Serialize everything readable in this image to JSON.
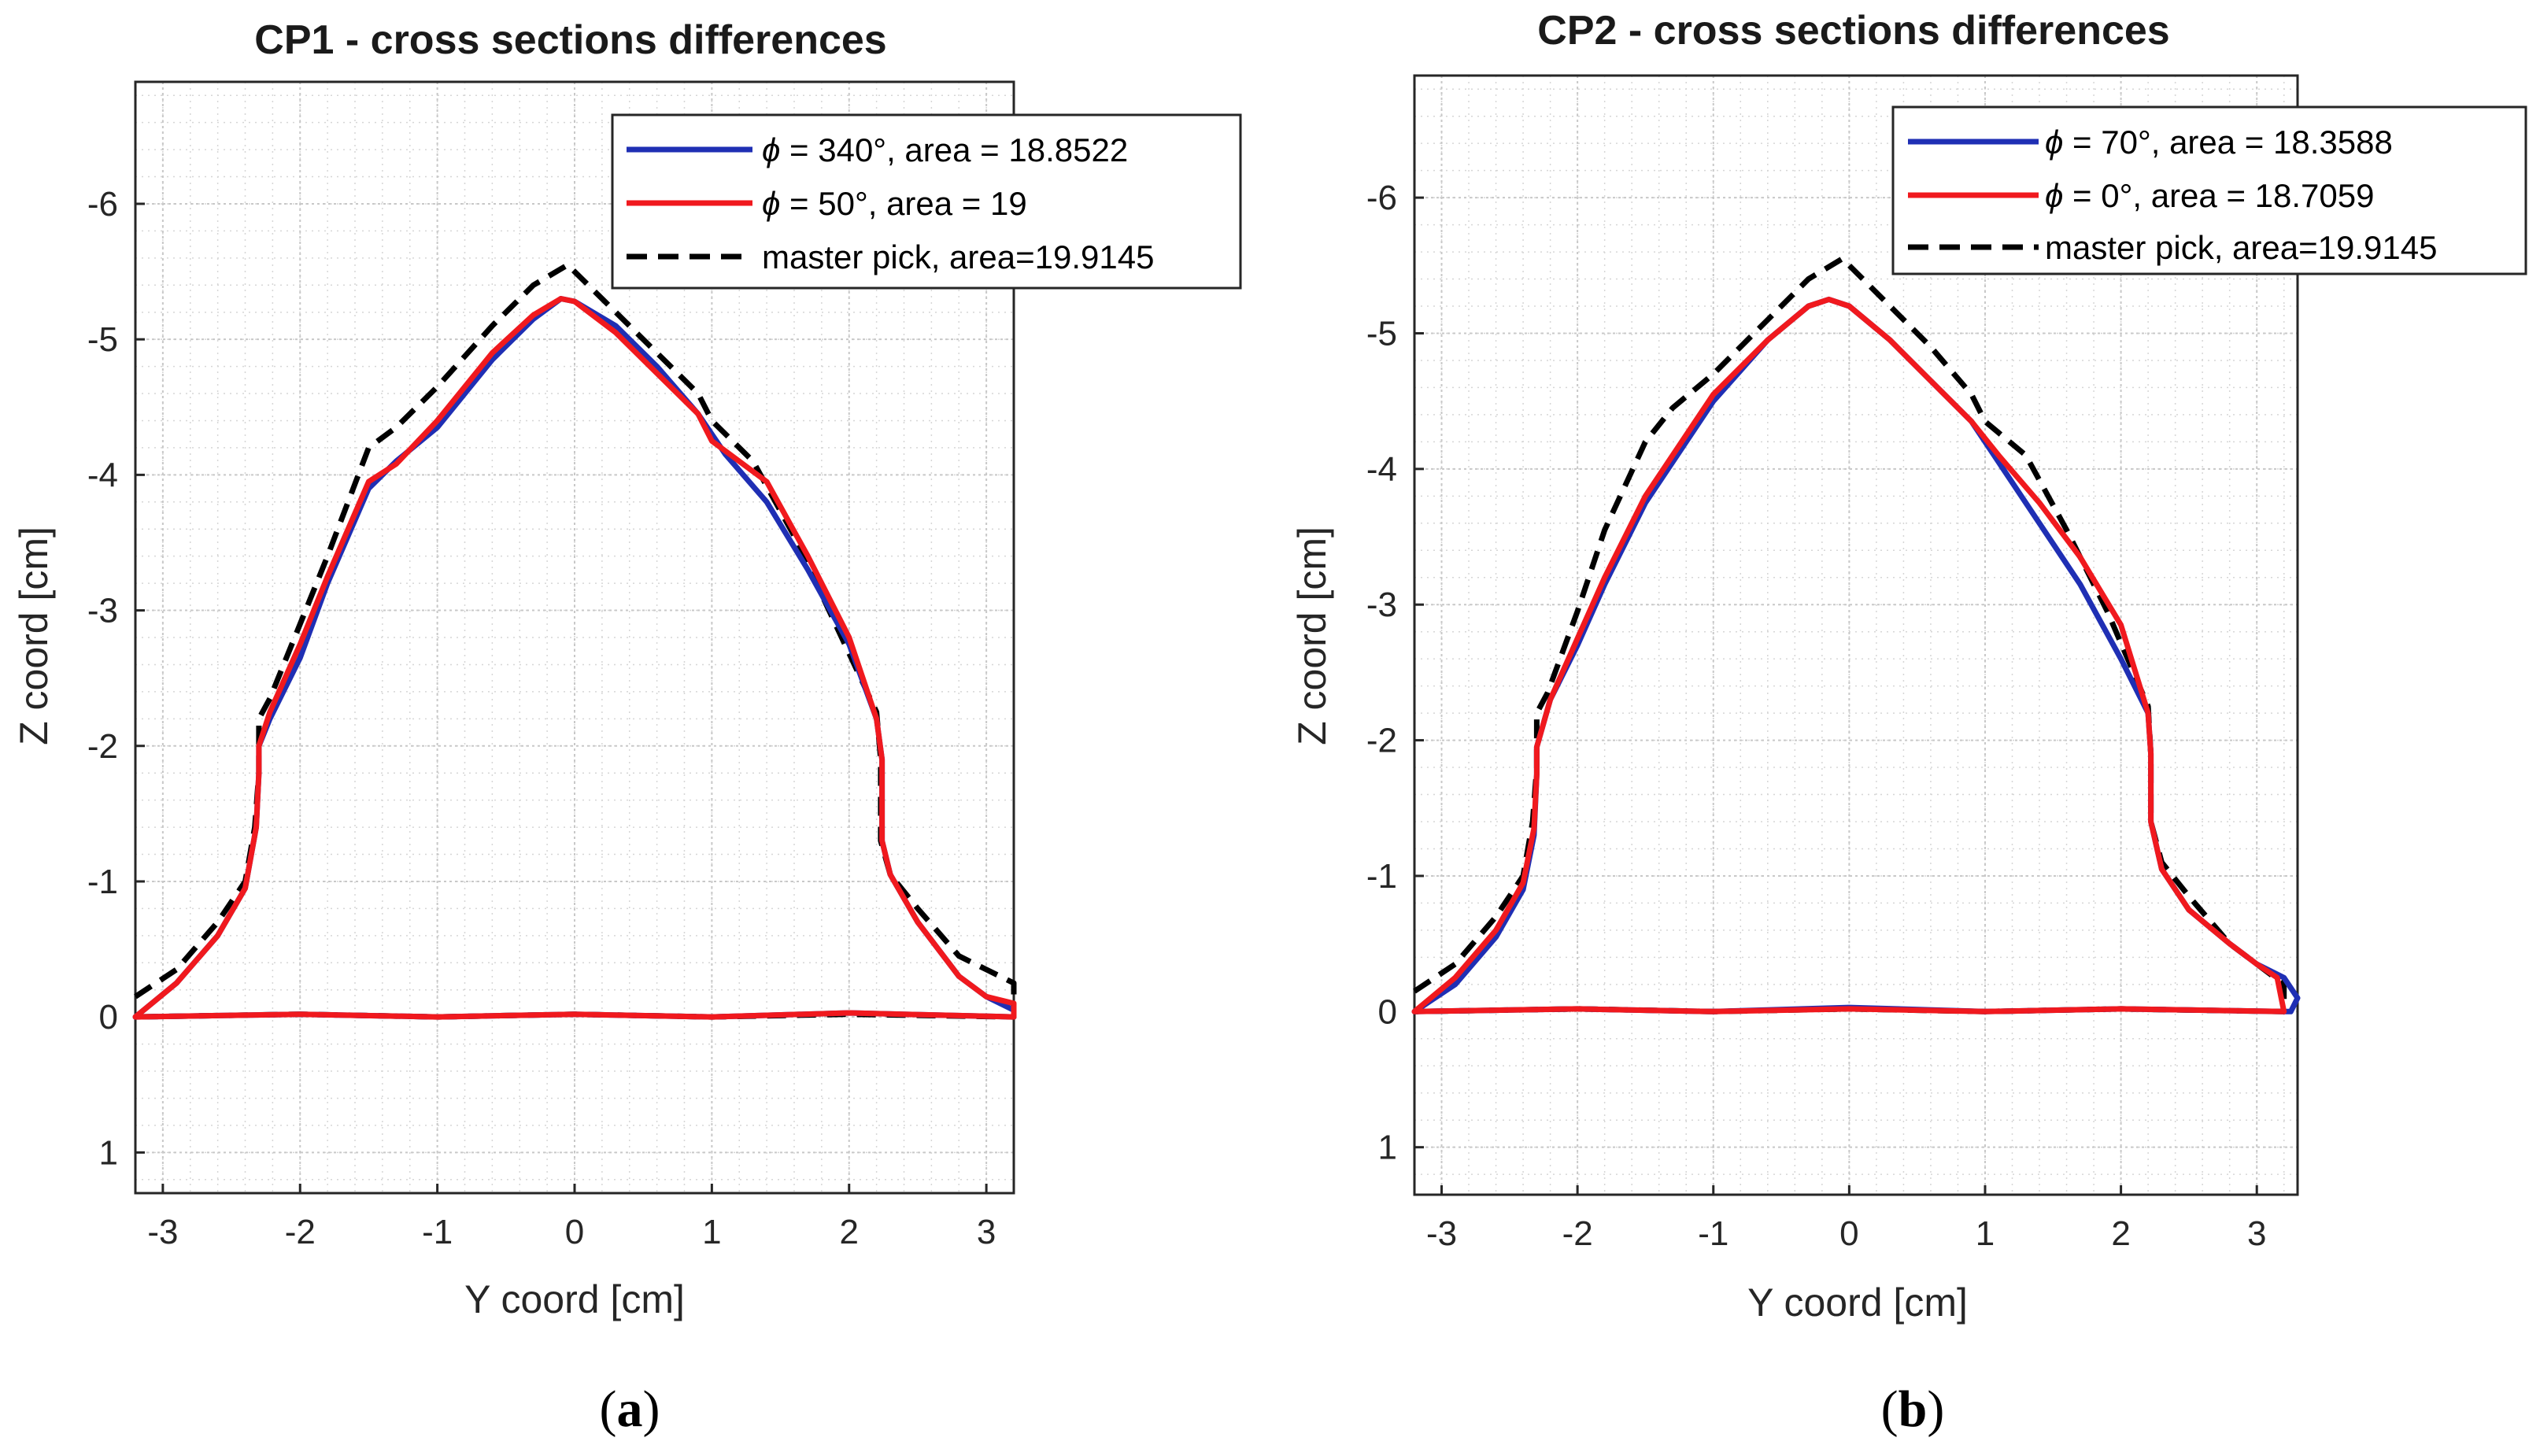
{
  "chart_data": [
    {
      "type": "line",
      "title": "CP1 - cross sections differences",
      "caption": {
        "open": "(",
        "letter": "a",
        "close": ")"
      },
      "xlabel": "Y coord [cm]",
      "ylabel": "Z coord [cm]",
      "xlim": [
        -3.2,
        3.2
      ],
      "ylim": [
        1.3,
        -6.9
      ],
      "y_reversed": true,
      "xticks": [
        -3,
        -2,
        -1,
        0,
        1,
        2,
        3
      ],
      "yticks": [
        -6,
        -5,
        -4,
        -3,
        -2,
        -1,
        0,
        1
      ],
      "grid": "on (major and minor)",
      "legend_position": "top-right",
      "series": [
        {
          "name": "ϕ = 340°, area = 18.8522",
          "legend_symbol": "ϕ",
          "legend_text": " = 340°, area = 18.8522",
          "color": "#1f2fb4",
          "style": "solid",
          "x": [
            -3.2,
            -2.9,
            -2.6,
            -2.4,
            -2.32,
            -2.3,
            -2.3,
            -2.22,
            -2.0,
            -1.8,
            -1.5,
            -1.3,
            -1.0,
            -0.6,
            -0.3,
            -0.1,
            0.0,
            0.3,
            0.6,
            0.9,
            1.1,
            1.4,
            1.7,
            2.0,
            2.2,
            2.24,
            2.24,
            2.3,
            2.5,
            2.8,
            3.0,
            3.2,
            3.2,
            2.0,
            1.0,
            0.0,
            -1.0,
            -2.0,
            -3.2
          ],
          "y": [
            0.0,
            -0.25,
            -0.6,
            -0.95,
            -1.4,
            -1.8,
            -2.0,
            -2.2,
            -2.65,
            -3.2,
            -3.9,
            -4.1,
            -4.35,
            -4.85,
            -5.15,
            -5.3,
            -5.28,
            -5.1,
            -4.8,
            -4.45,
            -4.15,
            -3.8,
            -3.3,
            -2.75,
            -2.2,
            -1.9,
            -1.3,
            -1.05,
            -0.7,
            -0.3,
            -0.15,
            -0.05,
            0.0,
            -0.03,
            0.0,
            -0.02,
            0.0,
            -0.02,
            0.0
          ]
        },
        {
          "name": "ϕ = 50°, area = 19",
          "legend_symbol": "ϕ",
          "legend_text": " = 50°, area = 19",
          "color": "#f0191e",
          "style": "solid",
          "x": [
            -3.2,
            -2.9,
            -2.6,
            -2.4,
            -2.32,
            -2.3,
            -2.3,
            -2.22,
            -2.0,
            -1.8,
            -1.5,
            -1.3,
            -1.0,
            -0.6,
            -0.3,
            -0.1,
            0.0,
            0.3,
            0.6,
            0.9,
            1.0,
            1.4,
            1.7,
            2.0,
            2.2,
            2.24,
            2.24,
            2.3,
            2.5,
            2.8,
            3.0,
            3.2,
            3.2,
            2.0,
            1.0,
            0.0,
            -1.0,
            -2.0,
            -3.2
          ],
          "y": [
            0.0,
            -0.25,
            -0.6,
            -0.95,
            -1.4,
            -1.8,
            -2.0,
            -2.25,
            -2.75,
            -3.25,
            -3.95,
            -4.08,
            -4.4,
            -4.9,
            -5.18,
            -5.3,
            -5.28,
            -5.05,
            -4.75,
            -4.45,
            -4.25,
            -3.95,
            -3.4,
            -2.8,
            -2.2,
            -1.9,
            -1.3,
            -1.05,
            -0.7,
            -0.3,
            -0.15,
            -0.1,
            0.0,
            -0.03,
            0.0,
            -0.02,
            0.0,
            -0.02,
            0.0
          ]
        },
        {
          "name": "master pick, area=19.9145",
          "legend_symbol": "",
          "legend_text": "master pick, area=19.9145",
          "color": "#000000",
          "style": "dashed",
          "x": [
            -3.2,
            -2.9,
            -2.6,
            -2.4,
            -2.33,
            -2.3,
            -2.3,
            -2.22,
            -2.0,
            -1.8,
            -1.5,
            -1.3,
            -1.0,
            -0.6,
            -0.3,
            -0.05,
            0.0,
            0.3,
            0.6,
            0.9,
            1.0,
            1.3,
            1.6,
            1.9,
            2.2,
            2.23,
            2.23,
            2.3,
            2.5,
            2.8,
            3.0,
            3.2,
            3.2,
            2.0,
            1.0,
            0.0,
            -1.0,
            -2.0,
            -3.2
          ],
          "y": [
            -0.15,
            -0.35,
            -0.7,
            -1.0,
            -1.4,
            -1.8,
            -2.2,
            -2.35,
            -2.9,
            -3.4,
            -4.2,
            -4.35,
            -4.65,
            -5.1,
            -5.4,
            -5.55,
            -5.5,
            -5.2,
            -4.9,
            -4.6,
            -4.4,
            -4.1,
            -3.55,
            -2.9,
            -2.25,
            -1.9,
            -1.3,
            -1.05,
            -0.8,
            -0.45,
            -0.35,
            -0.25,
            0.0,
            -0.02,
            0.0,
            -0.02,
            0.0,
            -0.02,
            0.0
          ]
        }
      ]
    },
    {
      "type": "line",
      "title": "CP2 - cross sections differences",
      "caption": {
        "open": "(",
        "letter": "b",
        "close": ")"
      },
      "xlabel": "Y coord [cm]",
      "ylabel": "Z coord [cm]",
      "xlim": [
        -3.2,
        3.3
      ],
      "ylim": [
        1.35,
        -6.9
      ],
      "y_reversed": true,
      "xticks": [
        -3,
        -2,
        -1,
        0,
        1,
        2,
        3
      ],
      "yticks": [
        -6,
        -5,
        -4,
        -3,
        -2,
        -1,
        0,
        1
      ],
      "grid": "on (major and minor)",
      "legend_position": "top-right",
      "series": [
        {
          "name": "ϕ = 70°, area = 18.3588",
          "legend_symbol": "ϕ",
          "legend_text": " = 70°, area = 18.3588",
          "color": "#1f2fb4",
          "style": "solid",
          "x": [
            -3.2,
            -2.9,
            -2.6,
            -2.4,
            -2.32,
            -2.3,
            -2.3,
            -2.2,
            -2.0,
            -1.8,
            -1.5,
            -1.3,
            -1.0,
            -0.6,
            -0.3,
            -0.15,
            0.0,
            0.3,
            0.6,
            0.9,
            1.1,
            1.4,
            1.7,
            2.0,
            2.2,
            2.22,
            2.22,
            2.3,
            2.5,
            2.8,
            3.0,
            3.2,
            3.3,
            3.25,
            3.2,
            2.0,
            1.0,
            0.0,
            -1.0,
            -2.0,
            -3.2
          ],
          "y": [
            0.0,
            -0.2,
            -0.55,
            -0.9,
            -1.3,
            -1.75,
            -1.95,
            -2.3,
            -2.7,
            -3.15,
            -3.75,
            -4.05,
            -4.5,
            -4.95,
            -5.2,
            -5.25,
            -5.2,
            -4.95,
            -4.65,
            -4.35,
            -4.05,
            -3.6,
            -3.15,
            -2.6,
            -2.2,
            -1.9,
            -1.4,
            -1.05,
            -0.75,
            -0.5,
            -0.35,
            -0.25,
            -0.1,
            0.0,
            0.0,
            -0.02,
            0.0,
            -0.03,
            0.0,
            -0.02,
            0.0
          ]
        },
        {
          "name": "ϕ = 0°, area = 18.7059",
          "legend_symbol": "ϕ",
          "legend_text": " = 0°, area = 18.7059",
          "color": "#f0191e",
          "style": "solid",
          "x": [
            -3.2,
            -2.9,
            -2.6,
            -2.4,
            -2.32,
            -2.3,
            -2.3,
            -2.2,
            -2.0,
            -1.8,
            -1.5,
            -1.3,
            -1.0,
            -0.6,
            -0.3,
            -0.15,
            0.0,
            0.3,
            0.6,
            0.9,
            1.1,
            1.4,
            1.7,
            2.0,
            2.2,
            2.22,
            2.22,
            2.3,
            2.5,
            2.8,
            3.0,
            3.15,
            3.2,
            2.0,
            1.0,
            0.0,
            -1.0,
            -2.0,
            -3.2
          ],
          "y": [
            0.0,
            -0.25,
            -0.6,
            -0.95,
            -1.35,
            -1.75,
            -1.95,
            -2.3,
            -2.75,
            -3.2,
            -3.8,
            -4.1,
            -4.55,
            -4.95,
            -5.2,
            -5.25,
            -5.2,
            -4.95,
            -4.65,
            -4.35,
            -4.1,
            -3.75,
            -3.35,
            -2.85,
            -2.2,
            -1.9,
            -1.4,
            -1.05,
            -0.75,
            -0.5,
            -0.35,
            -0.25,
            0.0,
            -0.02,
            0.0,
            -0.02,
            0.0,
            -0.02,
            0.0
          ]
        },
        {
          "name": "master pick, area=19.9145",
          "legend_symbol": "",
          "legend_text": "master pick, area=19.9145",
          "color": "#000000",
          "style": "dashed",
          "x": [
            -3.2,
            -2.9,
            -2.6,
            -2.4,
            -2.33,
            -2.3,
            -2.3,
            -2.22,
            -2.0,
            -1.8,
            -1.5,
            -1.3,
            -1.0,
            -0.6,
            -0.3,
            -0.05,
            0.0,
            0.3,
            0.6,
            0.9,
            1.0,
            1.3,
            1.6,
            1.9,
            2.2,
            2.22,
            2.22,
            2.3,
            2.5,
            2.8,
            3.0,
            3.2,
            3.2,
            2.0,
            1.0,
            0.0,
            -1.0,
            -2.0,
            -3.2
          ],
          "y": [
            -0.15,
            -0.35,
            -0.7,
            -1.0,
            -1.4,
            -1.8,
            -2.2,
            -2.35,
            -2.95,
            -3.55,
            -4.2,
            -4.45,
            -4.7,
            -5.1,
            -5.4,
            -5.55,
            -5.5,
            -5.2,
            -4.9,
            -4.55,
            -4.35,
            -4.1,
            -3.55,
            -2.95,
            -2.25,
            -1.9,
            -1.4,
            -1.1,
            -0.85,
            -0.5,
            -0.35,
            -0.2,
            0.0,
            -0.02,
            0.0,
            -0.02,
            0.0,
            -0.02,
            0.0
          ]
        }
      ]
    }
  ]
}
